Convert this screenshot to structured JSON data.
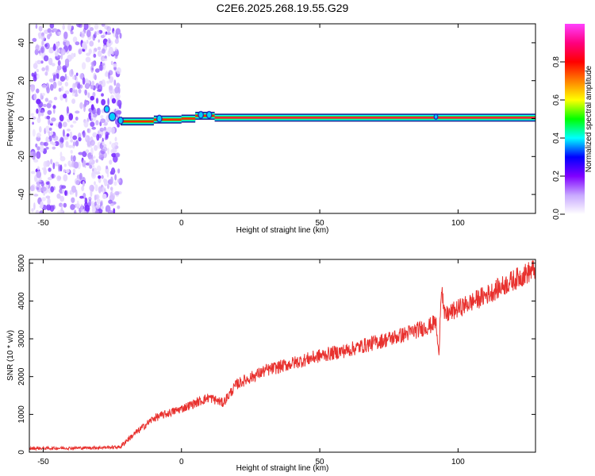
{
  "title": "C2E6.2025.268.19.55.G29",
  "chart_data": [
    {
      "type": "heatmap",
      "name": "spectrogram",
      "xlabel": "Height of straight line (km)",
      "ylabel": "Frequency (Hz)",
      "xlim": [
        -55,
        128
      ],
      "ylim": [
        -50,
        50
      ],
      "xticks": [
        -50,
        0,
        50,
        100
      ],
      "yticks": [
        -40,
        -20,
        0,
        20,
        40
      ],
      "grid": false,
      "noise_region_x": [
        -54,
        -22
      ],
      "tone_segments": [
        {
          "x0": -22,
          "x1": -10,
          "y": -1.5
        },
        {
          "x0": -10,
          "x1": 0,
          "y": -0.5
        },
        {
          "x0": 0,
          "x1": 5,
          "y": 0
        },
        {
          "x0": 5,
          "x1": 12,
          "y": 1.5
        },
        {
          "x0": 12,
          "x1": 128,
          "y": 0.5
        }
      ],
      "colorbar": {
        "label": "Normalized spectral amplitude",
        "range": [
          0,
          1
        ],
        "ticks": [
          0.0,
          0.2,
          0.4,
          0.6,
          0.8
        ],
        "tick_labels": [
          "0.0",
          "0.2",
          "0.4",
          "0.6",
          "0.8"
        ],
        "colors": [
          "#ffffff",
          "#c8a8ff",
          "#8000ff",
          "#0000ff",
          "#00ffff",
          "#00ff00",
          "#ffff00",
          "#ff8000",
          "#ff0000",
          "#ff0080",
          "#ff40ff"
        ]
      }
    },
    {
      "type": "line",
      "name": "snr",
      "xlabel": "Height of straight line (km)",
      "ylabel": "SNR (10 * v/v)",
      "xlim": [
        -55,
        128
      ],
      "ylim": [
        0,
        5100
      ],
      "xticks": [
        -50,
        0,
        50,
        100
      ],
      "yticks": [
        0,
        1000,
        2000,
        3000,
        4000,
        5000
      ],
      "grid": false,
      "color": "#e8312e",
      "x": [
        -55,
        -40,
        -30,
        -22,
        -20,
        -10,
        0,
        10,
        15,
        20,
        30,
        40,
        50,
        60,
        70,
        80,
        90,
        92,
        93,
        94,
        95,
        100,
        110,
        120,
        128
      ],
      "y": [
        100,
        110,
        120,
        140,
        300,
        900,
        1150,
        1450,
        1300,
        1800,
        2150,
        2350,
        2550,
        2700,
        2900,
        3100,
        3350,
        3450,
        2500,
        4500,
        3600,
        3800,
        4150,
        4550,
        4850
      ]
    }
  ]
}
